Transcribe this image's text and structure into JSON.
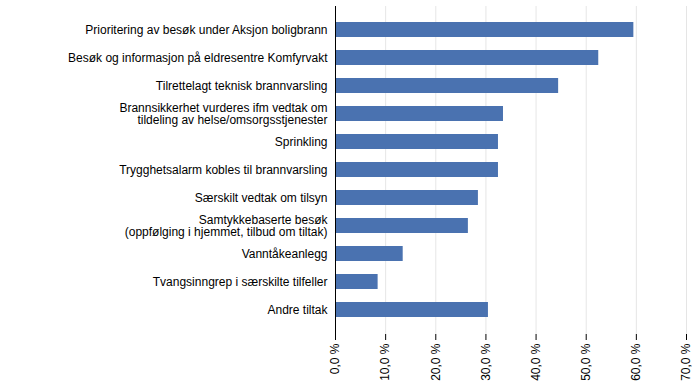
{
  "chart_data": {
    "type": "bar",
    "orientation": "horizontal",
    "categories": [
      "Prioritering av besøk under Aksjon boligbrann",
      "Besøk og informasjon på eldresentre Komfyrvakt",
      "Tilrettelagt teknisk brannvarsling",
      "Brannsikkerhet vurderes ifm vedtak om\ntildeling av helse/omsorgsstjenester",
      "Sprinkling",
      "Trygghetsalarm kobles til brannvarsling",
      "Særskilt vedtak om tilsyn",
      "Samtykkebaserte besøk\n(oppfølging i hjemmet, tilbud om tiltak)",
      "Vanntåkeanlegg",
      "Tvangsinngrep i særskilte tilfeller",
      "Andre tiltak"
    ],
    "values": [
      59.5,
      52.5,
      44.5,
      33.5,
      32.5,
      32.5,
      28.5,
      26.5,
      13.5,
      8.5,
      30.5
    ],
    "color": "#4a72b0",
    "xlim": [
      0,
      70
    ],
    "xticks": [
      {
        "value": 0,
        "label": "0,0 %"
      },
      {
        "value": 10,
        "label": "10,0 %"
      },
      {
        "value": 20,
        "label": "20,0 %"
      },
      {
        "value": 30,
        "label": "30,0 %"
      },
      {
        "value": 40,
        "label": "40,0 %"
      },
      {
        "value": 50,
        "label": "50,0 %"
      },
      {
        "value": 60,
        "label": "60,0 %"
      },
      {
        "value": 70,
        "label": "70,0 %"
      }
    ],
    "grid": true
  }
}
